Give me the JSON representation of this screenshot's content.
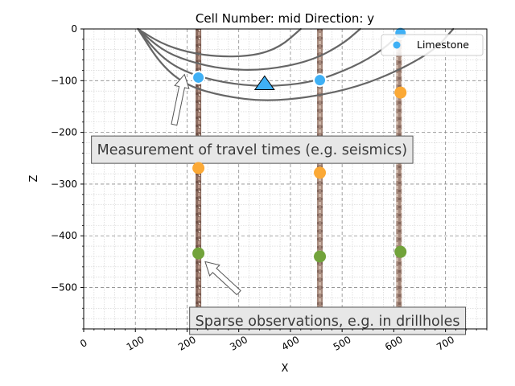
{
  "chart_data": {
    "type": "scatter",
    "title": "Cell Number: mid Direction: y",
    "xlabel": "X",
    "ylabel": "Z",
    "xlim": [
      0,
      780
    ],
    "ylim": [
      -580,
      0
    ],
    "x_ticks": [
      0,
      100,
      200,
      300,
      400,
      500,
      600,
      700
    ],
    "y_ticks": [
      0,
      -100,
      -200,
      -300,
      -400,
      -500
    ],
    "y_tick_labels": [
      "0",
      "−100",
      "−200",
      "−300",
      "−400",
      "−500"
    ],
    "grid": true,
    "legend_position": "top-right",
    "legend": [
      {
        "label": "Limestone",
        "color": "#3fb0f5"
      }
    ],
    "drillholes": [
      {
        "x": 222,
        "z_top": 0,
        "z_bottom": -580
      },
      {
        "x": 457,
        "z_top": 0,
        "z_bottom": -580
      },
      {
        "x": 610,
        "z_top": 0,
        "z_bottom": -580
      }
    ],
    "interface_points": [
      {
        "series": "blue",
        "color": "#3fb0f5",
        "values": [
          {
            "x": 222,
            "z": -94
          },
          {
            "x": 457,
            "z": -99
          },
          {
            "x": 613,
            "z": -8
          }
        ]
      },
      {
        "series": "orange",
        "color": "#fba936",
        "values": [
          {
            "x": 222,
            "z": -269
          },
          {
            "x": 457,
            "z": -278
          },
          {
            "x": 613,
            "z": -123
          }
        ]
      },
      {
        "series": "green",
        "color": "#72a33b",
        "values": [
          {
            "x": 222,
            "z": -434
          },
          {
            "x": 457,
            "z": -440
          },
          {
            "x": 613,
            "z": -431
          }
        ]
      }
    ],
    "orientation_marker": {
      "x": 350,
      "z": -108,
      "color": "#3fb0f5"
    },
    "wavefront_origin": {
      "x": 105,
      "z": 0
    },
    "wavefronts": [
      [
        [
          105,
          0
        ],
        [
          150,
          -28
        ],
        [
          200,
          -45
        ],
        [
          260,
          -54
        ],
        [
          330,
          -52
        ],
        [
          380,
          -35
        ],
        [
          420,
          0
        ]
      ],
      [
        [
          105,
          0
        ],
        [
          150,
          -40
        ],
        [
          200,
          -62
        ],
        [
          270,
          -78
        ],
        [
          350,
          -80
        ],
        [
          440,
          -62
        ],
        [
          500,
          -30
        ],
        [
          535,
          0
        ]
      ],
      [
        [
          105,
          0
        ],
        [
          150,
          -55
        ],
        [
          200,
          -85
        ],
        [
          270,
          -104
        ],
        [
          350,
          -112
        ],
        [
          440,
          -104
        ],
        [
          520,
          -75
        ],
        [
          580,
          -40
        ],
        [
          620,
          0
        ]
      ],
      [
        [
          105,
          0
        ],
        [
          150,
          -70
        ],
        [
          200,
          -110
        ],
        [
          270,
          -130
        ],
        [
          350,
          -140
        ],
        [
          440,
          -132
        ],
        [
          530,
          -112
        ],
        [
          610,
          -80
        ],
        [
          680,
          -40
        ],
        [
          715,
          0
        ]
      ]
    ],
    "annotations": [
      {
        "text": "Measurement of travel times (e.g. seismics)",
        "box_x": 15,
        "box_z": -207,
        "target_x": 195,
        "target_z": -88,
        "arrow_from_x": 175,
        "arrow_from_z": -185
      },
      {
        "text": "Sparse observations, e.g. in drillholes",
        "box_x": 205,
        "box_z": -538,
        "target_x": 235,
        "target_z": -450,
        "arrow_from_x": 300,
        "arrow_from_z": -510
      }
    ]
  }
}
